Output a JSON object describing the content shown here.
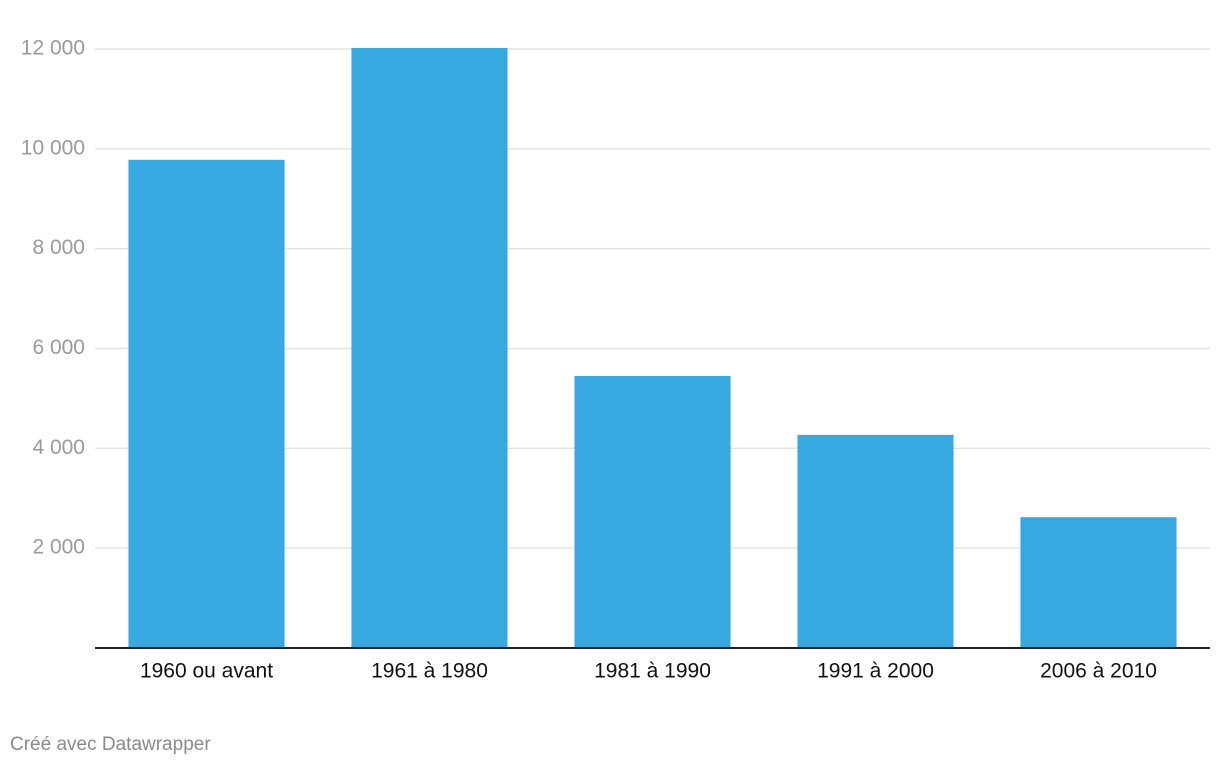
{
  "chart_data": {
    "type": "bar",
    "categories": [
      "1960 ou avant",
      "1961 à 1980",
      "1981 à 1990",
      "1991 à 2000",
      "2006 à 2010"
    ],
    "values": [
      9780,
      12020,
      5450,
      4270,
      2620
    ],
    "color": "#38a9e0",
    "ylim": [
      0,
      12000
    ],
    "yticks": [
      {
        "value": 2000,
        "label": "2 000"
      },
      {
        "value": 4000,
        "label": "4 000"
      },
      {
        "value": 6000,
        "label": "6 000"
      },
      {
        "value": 8000,
        "label": "8 000"
      },
      {
        "value": 10000,
        "label": "10 000"
      },
      {
        "value": 12000,
        "label": "12 000"
      }
    ],
    "grid": true,
    "footer": "Créé avec Datawrapper"
  }
}
